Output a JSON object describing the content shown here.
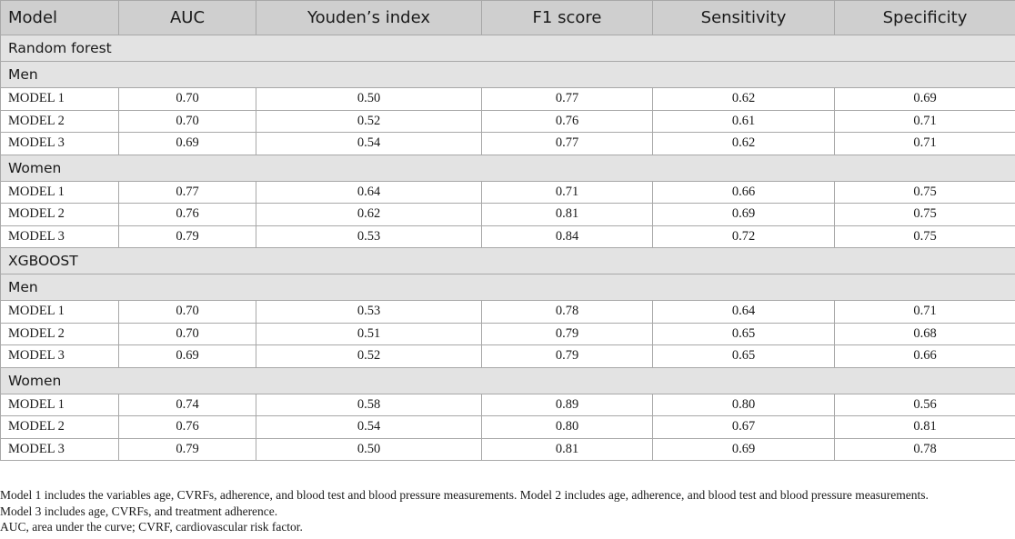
{
  "table": {
    "headers": [
      "Model",
      "AUC",
      "Youden’s index",
      "F1 score",
      "Sensitivity",
      "Specificity"
    ],
    "sections": [
      {
        "title": "Random forest",
        "groups": [
          {
            "title": "Men",
            "rows": [
              [
                "MODEL 1",
                "0.70",
                "0.50",
                "0.77",
                "0.62",
                "0.69"
              ],
              [
                "MODEL 2",
                "0.70",
                "0.52",
                "0.76",
                "0.61",
                "0.71"
              ],
              [
                "MODEL 3",
                "0.69",
                "0.54",
                "0.77",
                "0.62",
                "0.71"
              ]
            ]
          },
          {
            "title": "Women",
            "rows": [
              [
                "MODEL 1",
                "0.77",
                "0.64",
                "0.71",
                "0.66",
                "0.75"
              ],
              [
                "MODEL 2",
                "0.76",
                "0.62",
                "0.81",
                "0.69",
                "0.75"
              ],
              [
                "MODEL 3",
                "0.79",
                "0.53",
                "0.84",
                "0.72",
                "0.75"
              ]
            ]
          }
        ]
      },
      {
        "title": "XGBOOST",
        "groups": [
          {
            "title": "Men",
            "rows": [
              [
                "MODEL 1",
                "0.70",
                "0.53",
                "0.78",
                "0.64",
                "0.71"
              ],
              [
                "MODEL 2",
                "0.70",
                "0.51",
                "0.79",
                "0.65",
                "0.68"
              ],
              [
                "MODEL 3",
                "0.69",
                "0.52",
                "0.79",
                "0.65",
                "0.66"
              ]
            ]
          },
          {
            "title": "Women",
            "rows": [
              [
                "MODEL 1",
                "0.74",
                "0.58",
                "0.89",
                "0.80",
                "0.56"
              ],
              [
                "MODEL 2",
                "0.76",
                "0.54",
                "0.80",
                "0.67",
                "0.81"
              ],
              [
                "MODEL 3",
                "0.79",
                "0.50",
                "0.81",
                "0.69",
                "0.78"
              ]
            ]
          }
        ]
      }
    ]
  },
  "notes": {
    "line1": "Model 1 includes the variables age, CVRFs, adherence, and blood test and blood pressure measurements. Model 2 includes age, adherence, and blood test and blood pressure measurements.",
    "line2": "Model 3 includes age, CVRFs, and treatment adherence.",
    "line3": "AUC, area under the curve; CVRF, cardiovascular risk factor."
  }
}
